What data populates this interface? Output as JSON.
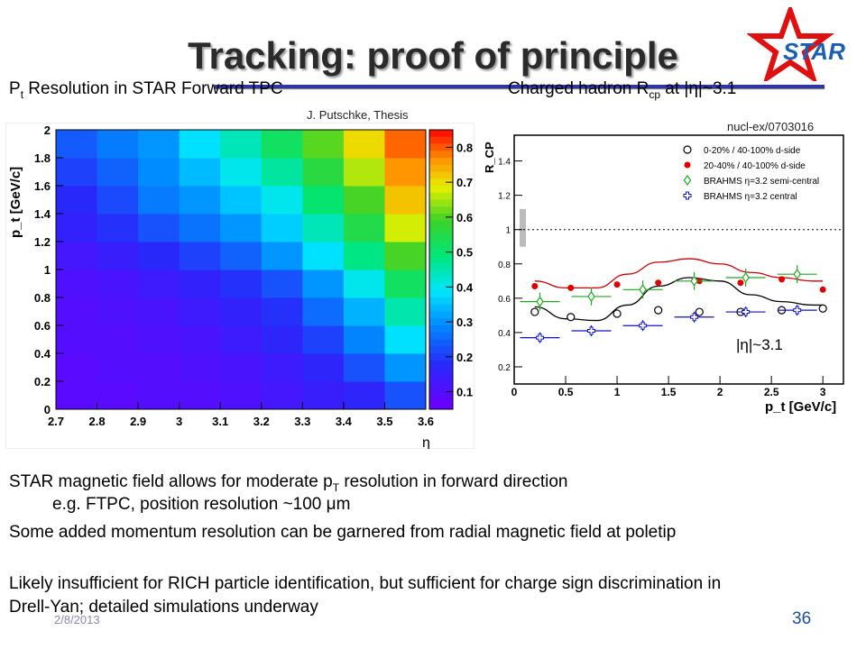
{
  "slide": {
    "title": "Tracking: proof of principle",
    "logo_text": "STAR",
    "left_subtitle_main": "P",
    "left_subtitle_sub": "t",
    "left_subtitle_rest": " Resolution in STAR Forward TPC",
    "right_subtitle_main": "Charged hadron R",
    "right_subtitle_sub": "cp",
    "right_subtitle_rest": " at |η|~3.1",
    "thesis_credit": "J. Putschke, Thesis",
    "nucl_ref": "nucl-ex/0703016",
    "eta_annotation": "|η|~3.1",
    "bullets": [
      {
        "pre": "STAR magnetic field allows for moderate p",
        "sub": "T",
        "post": " resolution in forward direction"
      },
      {
        "pre": "e.g. FTPC, position resolution ~100 μm",
        "sub": "",
        "post": ""
      },
      {
        "pre": "Some added momentum resolution can be garnered from radial magnetic field at poletip",
        "sub": "",
        "post": ""
      },
      {
        "pre": "Likely insufficient for RICH particle identification, but sufficient for charge sign  discrimination in",
        "sub": "",
        "post": ""
      },
      {
        "pre": "Drell-Yan; detailed simulations underway",
        "sub": "",
        "post": ""
      }
    ],
    "footer_date": "2/8/2013",
    "page_number": "36"
  },
  "chart_data": [
    {
      "type": "heatmap",
      "xlabel": "η",
      "ylabel": "p_t [GeV/c]",
      "x_edges": [
        2.7,
        2.8,
        2.9,
        3.0,
        3.1,
        3.2,
        3.3,
        3.4,
        3.5,
        3.6
      ],
      "y_edges": [
        0,
        0.2,
        0.4,
        0.6,
        0.8,
        1.0,
        1.2,
        1.4,
        1.6,
        1.8,
        2.0
      ],
      "xlim": [
        2.7,
        3.6
      ],
      "ylim": [
        0,
        2
      ],
      "zlim": [
        0.05,
        0.85
      ],
      "x_ticks": [
        2.7,
        2.8,
        2.9,
        3.0,
        3.1,
        3.2,
        3.3,
        3.4,
        3.5,
        3.6
      ],
      "x_tick_labels": [
        "2.7",
        "2.8",
        "2.9",
        "3",
        "3.1",
        "3.2",
        "3.3",
        "3.4",
        "3.5",
        "3.6"
      ],
      "y_ticks": [
        0,
        0.2,
        0.4,
        0.6,
        0.8,
        1.0,
        1.2,
        1.4,
        1.6,
        1.8,
        2.0
      ],
      "y_tick_labels": [
        "0",
        "0.2",
        "0.4",
        "0.6",
        "0.8",
        "1",
        "1.2",
        "1.4",
        "1.6",
        "1.8",
        "2"
      ],
      "z_ticks": [
        0.1,
        0.2,
        0.3,
        0.4,
        0.5,
        0.6,
        0.7,
        0.8
      ],
      "z_tick_labels": [
        "0.1",
        "0.2",
        "0.3",
        "0.4",
        "0.5",
        "0.6",
        "0.7",
        "0.8"
      ],
      "z": [
        [
          0.08,
          0.08,
          0.09,
          0.09,
          0.1,
          0.12,
          0.14,
          0.16,
          0.22
        ],
        [
          0.08,
          0.09,
          0.09,
          0.1,
          0.11,
          0.13,
          0.16,
          0.22,
          0.3
        ],
        [
          0.09,
          0.09,
          0.1,
          0.11,
          0.13,
          0.16,
          0.2,
          0.28,
          0.38
        ],
        [
          0.09,
          0.1,
          0.11,
          0.13,
          0.15,
          0.18,
          0.25,
          0.33,
          0.45
        ],
        [
          0.1,
          0.11,
          0.13,
          0.15,
          0.18,
          0.22,
          0.3,
          0.4,
          0.52
        ],
        [
          0.12,
          0.14,
          0.17,
          0.2,
          0.24,
          0.3,
          0.38,
          0.48,
          0.6
        ],
        [
          0.15,
          0.18,
          0.22,
          0.26,
          0.3,
          0.36,
          0.44,
          0.55,
          0.68
        ],
        [
          0.17,
          0.21,
          0.27,
          0.3,
          0.35,
          0.4,
          0.5,
          0.6,
          0.73
        ],
        [
          0.2,
          0.24,
          0.29,
          0.34,
          0.4,
          0.46,
          0.56,
          0.66,
          0.77
        ],
        [
          0.23,
          0.27,
          0.3,
          0.38,
          0.44,
          0.52,
          0.61,
          0.71,
          0.8
        ]
      ]
    },
    {
      "type": "scatter",
      "xlabel": "p_t [GeV/c]",
      "ylabel": "R_CP",
      "xlim": [
        0,
        3.2
      ],
      "ylim": [
        0.1,
        1.55
      ],
      "x_ticks": [
        0,
        0.5,
        1,
        1.5,
        2,
        2.5,
        3
      ],
      "x_tick_labels": [
        "0",
        "0.5",
        "1",
        "1.5",
        "2",
        "2.5",
        "3"
      ],
      "y_ticks": [
        0.2,
        0.4,
        0.6,
        0.8,
        1.0,
        1.2,
        1.4
      ],
      "y_tick_labels": [
        "0.2",
        "0.4",
        "0.6",
        "0.8",
        "1",
        "1.2",
        "1.4"
      ],
      "reference_line": 1.0,
      "series": [
        {
          "name": "0-20% / 40-100% d-side",
          "marker": "open-circle",
          "color": "#000000",
          "x": [
            0.2,
            0.55,
            1.0,
            1.4,
            1.8,
            2.2,
            2.6,
            3.0
          ],
          "y": [
            0.52,
            0.49,
            0.51,
            0.53,
            0.52,
            0.52,
            0.53,
            0.54
          ]
        },
        {
          "name": "20-40% / 40-100% d-side",
          "marker": "filled-circle",
          "color": "#e00000",
          "x": [
            0.2,
            0.55,
            1.0,
            1.4,
            1.8,
            2.2,
            2.6,
            3.0
          ],
          "y": [
            0.67,
            0.66,
            0.68,
            0.69,
            0.7,
            0.69,
            0.71,
            0.65
          ]
        },
        {
          "name": "BRAHMS η=3.2 semi-central",
          "marker": "open-diamond",
          "color": "#1faa1f",
          "x": [
            0.25,
            0.75,
            1.25,
            1.75,
            2.25,
            2.75
          ],
          "y": [
            0.58,
            0.61,
            0.65,
            0.7,
            0.72,
            0.74
          ]
        },
        {
          "name": "BRAHMS η=3.2 central",
          "marker": "open-cross",
          "color": "#1010cc",
          "x": [
            0.25,
            0.75,
            1.25,
            1.75,
            2.25,
            2.75
          ],
          "y": [
            0.37,
            0.41,
            0.44,
            0.49,
            0.52,
            0.53
          ]
        }
      ],
      "curves": [
        {
          "color": "#000000",
          "x": [
            0.2,
            0.5,
            0.8,
            1.1,
            1.4,
            1.7,
            2.0,
            2.3,
            2.6,
            2.9,
            3.0
          ],
          "y": [
            0.55,
            0.48,
            0.47,
            0.56,
            0.67,
            0.72,
            0.7,
            0.62,
            0.58,
            0.56,
            0.56
          ]
        },
        {
          "color": "#d00000",
          "x": [
            0.2,
            0.5,
            0.8,
            1.1,
            1.4,
            1.7,
            2.0,
            2.3,
            2.6,
            2.9,
            3.0
          ],
          "y": [
            0.7,
            0.66,
            0.66,
            0.74,
            0.81,
            0.83,
            0.8,
            0.75,
            0.72,
            0.7,
            0.7
          ]
        }
      ]
    }
  ]
}
